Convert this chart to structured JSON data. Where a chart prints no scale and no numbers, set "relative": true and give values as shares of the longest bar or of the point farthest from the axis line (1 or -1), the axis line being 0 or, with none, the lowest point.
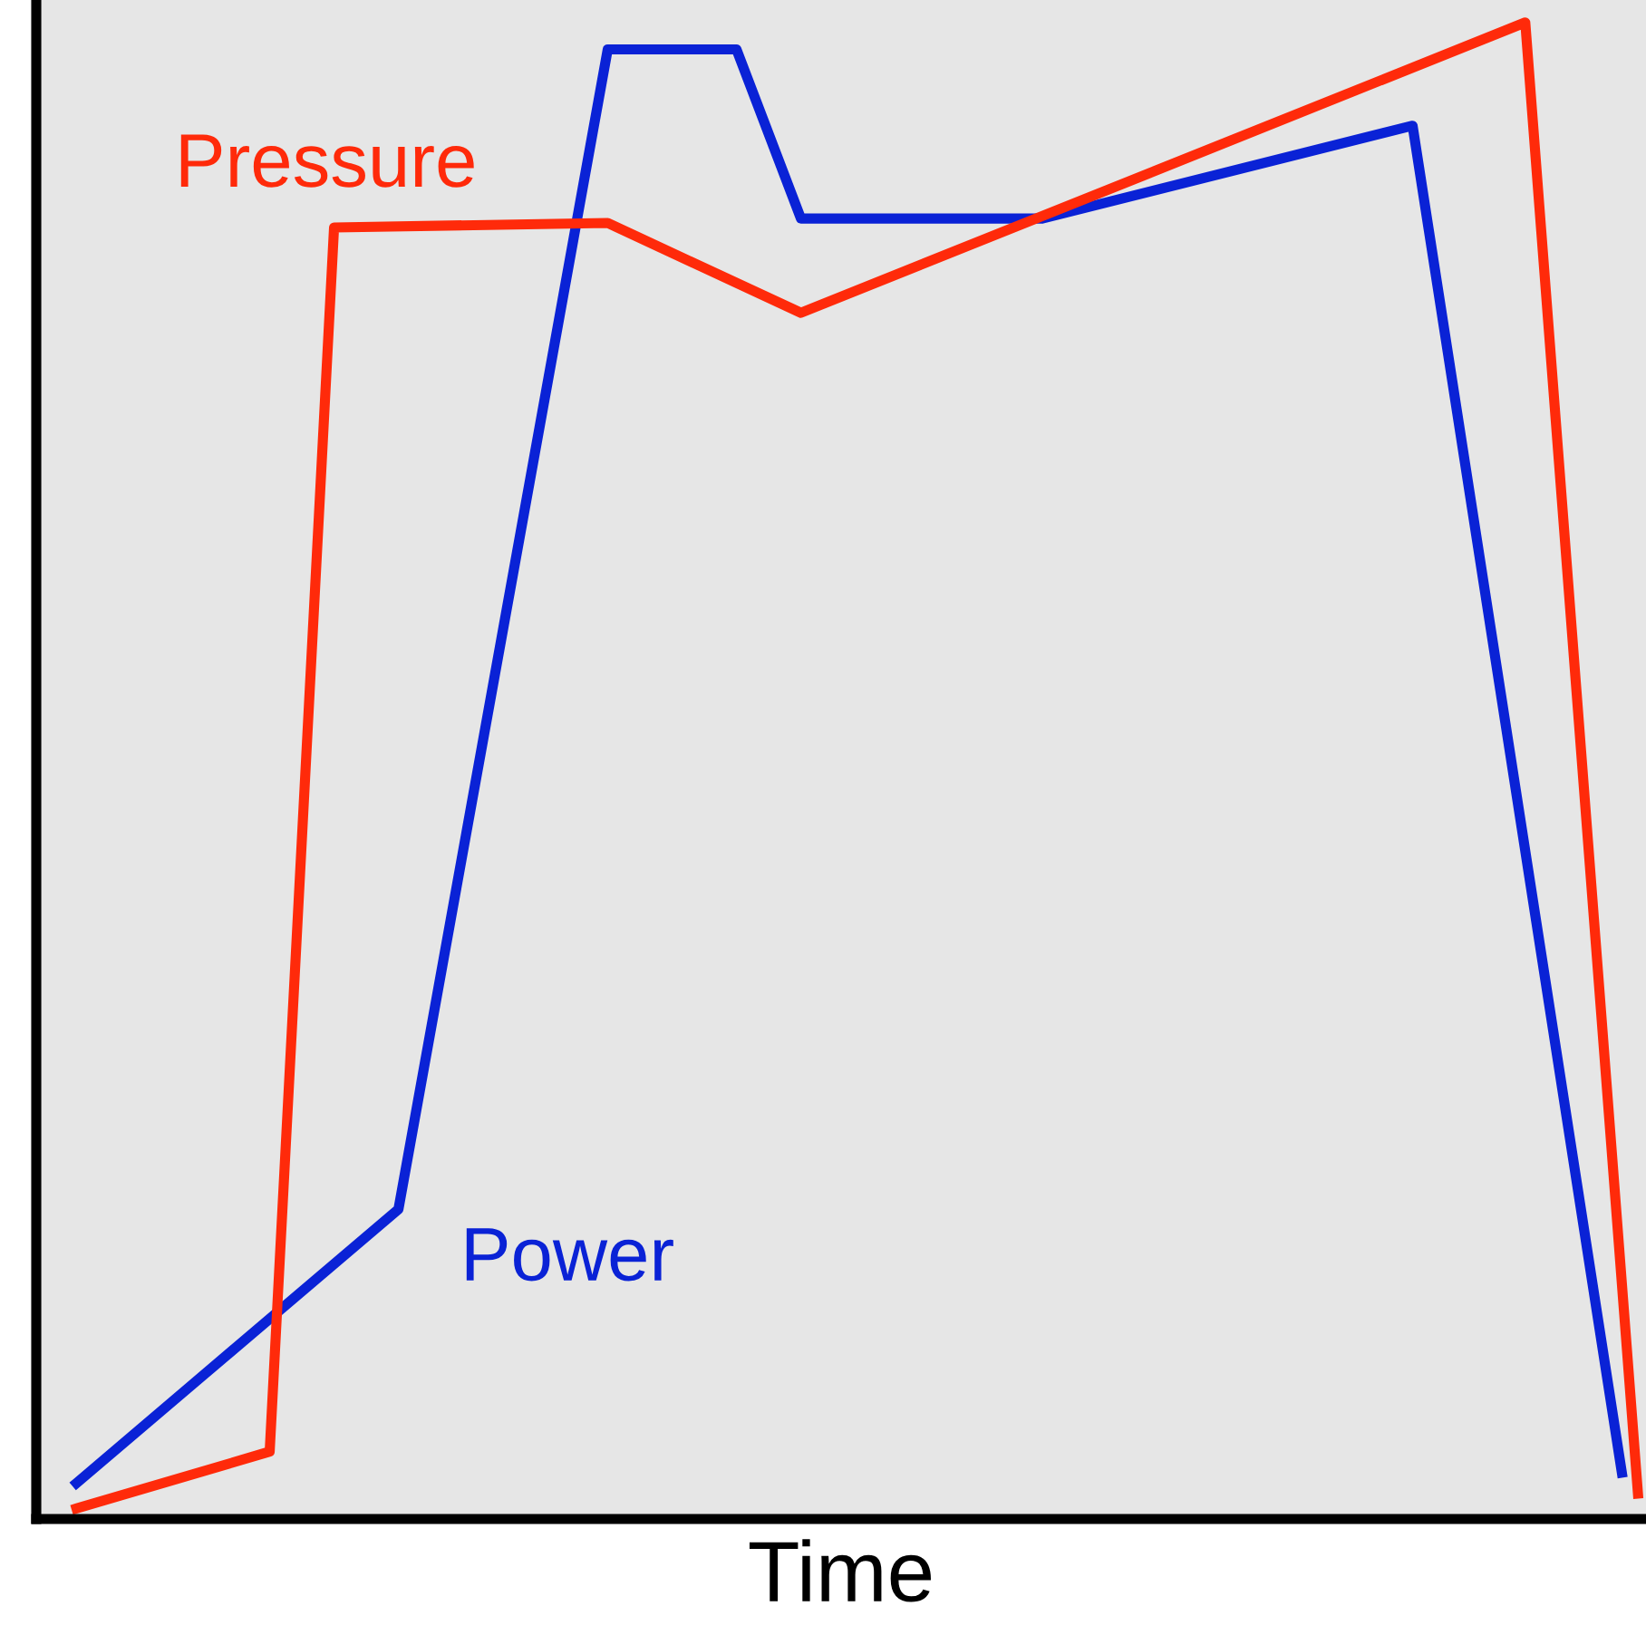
{
  "chart_data": {
    "type": "line",
    "xlabel": "Time",
    "relative": true,
    "tick_labels": false,
    "legend": false,
    "marker": "none",
    "line_style": "solid",
    "categories": [
      null,
      null,
      null,
      null,
      null,
      null,
      null,
      null,
      null,
      null,
      null,
      null,
      null,
      null,
      null,
      null,
      null,
      null,
      null,
      null,
      null,
      null,
      null,
      null,
      null,
      null,
      null,
      null,
      null,
      null,
      null,
      null,
      null,
      null,
      null,
      null,
      null,
      null,
      null,
      null,
      null,
      null,
      null,
      null,
      null,
      null,
      null,
      null,
      null,
      null,
      null,
      null,
      null,
      null,
      null,
      null,
      null,
      null,
      null,
      null,
      null,
      null,
      null,
      null,
      null,
      null,
      null,
      null,
      null,
      null,
      null,
      null,
      null,
      null,
      null,
      null,
      null,
      null,
      null,
      null,
      null,
      null,
      null,
      null,
      null,
      null,
      null,
      null,
      null,
      null,
      null,
      null,
      null,
      null,
      null,
      null,
      null,
      null,
      null,
      null
    ],
    "series": [
      {
        "name": "Power",
        "color": "#0a22d6",
        "values": [
          null,
          null,
          0.024,
          null,
          null,
          null,
          null,
          null,
          null,
          null,
          null,
          null,
          null,
          null,
          null,
          null,
          null,
          null,
          null,
          null,
          null,
          null,
          0.207,
          null,
          null,
          null,
          null,
          null,
          null,
          null,
          null,
          null,
          null,
          null,
          null,
          0.982,
          null,
          null,
          null,
          null,
          null,
          null,
          null,
          0.982,
          null,
          null,
          null,
          0.869,
          null,
          null,
          null,
          null,
          null,
          null,
          null,
          null,
          null,
          null,
          null,
          null,
          null,
          null,
          0.869,
          null,
          null,
          null,
          null,
          null,
          null,
          null,
          null,
          null,
          null,
          null,
          null,
          null,
          null,
          null,
          null,
          null,
          null,
          null,
          null,
          null,
          null,
          0.931,
          null,
          null,
          null,
          null,
          null,
          null,
          null,
          null,
          null,
          null,
          null,
          null,
          0.031,
          null
        ]
      },
      {
        "name": "Pressure",
        "color": "#ff2a0a",
        "values": [
          null,
          null,
          0.007,
          null,
          null,
          null,
          null,
          null,
          null,
          null,
          null,
          null,
          null,
          null,
          0.045,
          null,
          null,
          null,
          0.863,
          null,
          null,
          null,
          null,
          null,
          null,
          null,
          null,
          null,
          null,
          null,
          null,
          null,
          null,
          null,
          null,
          0.866,
          null,
          null,
          null,
          null,
          null,
          null,
          null,
          null,
          null,
          null,
          null,
          0.806,
          null,
          null,
          null,
          null,
          null,
          null,
          null,
          null,
          null,
          null,
          null,
          null,
          null,
          null,
          null,
          null,
          null,
          null,
          null,
          null,
          null,
          null,
          null,
          null,
          null,
          null,
          null,
          null,
          null,
          null,
          null,
          null,
          null,
          null,
          null,
          null,
          null,
          null,
          null,
          null,
          null,
          null,
          null,
          null,
          1,
          null,
          null,
          null,
          null,
          null,
          null,
          0.017
        ]
      }
    ]
  }
}
